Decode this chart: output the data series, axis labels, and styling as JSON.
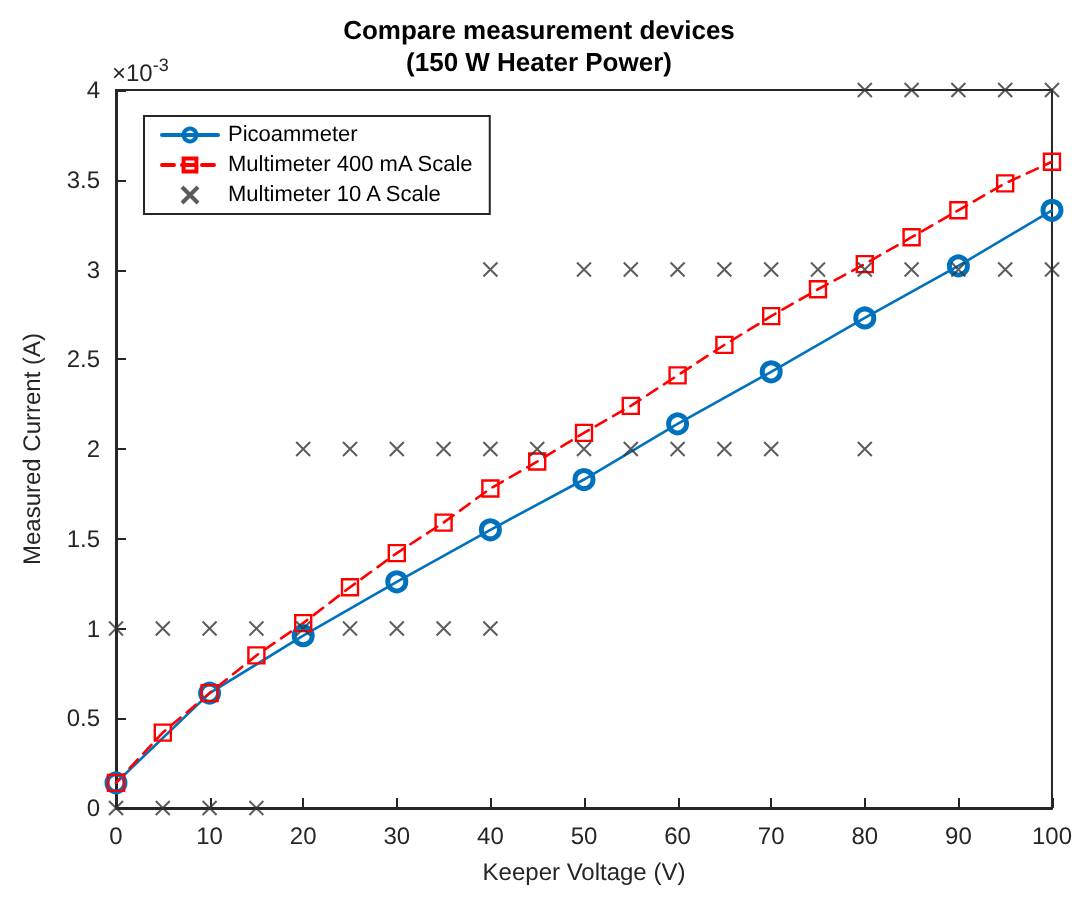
{
  "chart_data": {
    "type": "line",
    "title": "Compare measurement devices\n(150 W Heater Power)",
    "xlabel": "Keeper Voltage (V)",
    "ylabel": "Measured Current (A)",
    "annotations": [
      "×10$^{-3}$"
    ],
    "xlim": [
      0,
      100
    ],
    "xticks": [
      0,
      10,
      20,
      30,
      40,
      50,
      60,
      70,
      80,
      90,
      100
    ],
    "ylim": [
      0,
      4
    ],
    "yticks": [
      0,
      0.5,
      1,
      1.5,
      2,
      2.5,
      3,
      3.5,
      4
    ],
    "grid": false,
    "legend": "top left",
    "series": [
      {
        "name": "Picoammeter",
        "color": "#0072bd",
        "marker": "circle",
        "line_style": "solid",
        "x": [
          0,
          10,
          20,
          30,
          40,
          50,
          60,
          70,
          80,
          90,
          100
        ],
        "values": [
          0.14,
          0.64,
          0.96,
          1.26,
          1.55,
          1.83,
          2.14,
          2.43,
          2.73,
          3.02,
          3.33
        ]
      },
      {
        "name": "Multimeter 400 mA Scale",
        "color": "#ff0000",
        "marker": "square",
        "line_style": "dashed",
        "x": [
          0,
          5,
          10,
          15,
          20,
          25,
          30,
          35,
          40,
          45,
          50,
          55,
          60,
          65,
          70,
          75,
          80,
          85,
          90,
          95,
          100
        ],
        "values": [
          0.14,
          0.42,
          0.64,
          0.85,
          1.03,
          1.23,
          1.42,
          1.59,
          1.78,
          1.93,
          2.09,
          2.24,
          2.41,
          2.58,
          2.74,
          2.89,
          3.03,
          3.18,
          3.33,
          3.48,
          3.6
        ]
      },
      {
        "name": "Multimeter 10 A Scale",
        "type": "scatter",
        "color": "#333333",
        "marker": "cross",
        "x": [
          0,
          0,
          5,
          5,
          10,
          10,
          15,
          15,
          20,
          20,
          25,
          25,
          30,
          30,
          35,
          35,
          40,
          40,
          40,
          45,
          50,
          50,
          55,
          55,
          60,
          60,
          65,
          65,
          70,
          70,
          75,
          80,
          80,
          80,
          85,
          85,
          90,
          90,
          95,
          95,
          100,
          100
        ],
        "values": [
          1,
          0,
          1,
          0,
          1,
          0,
          1,
          0,
          2,
          1,
          2,
          1,
          2,
          1,
          2,
          1,
          3,
          2,
          1,
          2,
          3,
          2,
          3,
          2,
          3,
          2,
          3,
          2,
          3,
          2,
          3,
          4,
          3,
          2,
          4,
          3,
          4,
          3,
          4,
          3,
          4,
          3
        ]
      }
    ]
  }
}
